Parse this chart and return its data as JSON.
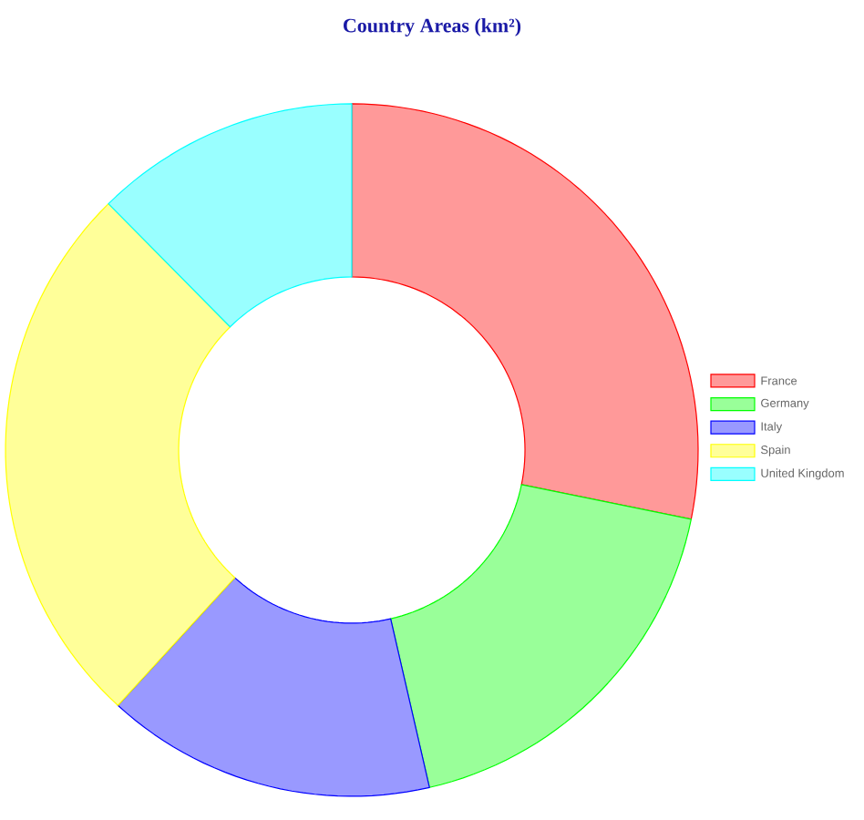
{
  "chart_data": {
    "type": "donut",
    "title": "Country Areas (km²)",
    "categories": [
      "France",
      "Germany",
      "Italy",
      "Spain",
      "United Kingdom"
    ],
    "values": [
      28.2,
      18.2,
      15.4,
      25.8,
      12.4
    ],
    "colors": [
      "#ff9999",
      "#99ff99",
      "#9999ff",
      "#ffff99",
      "#99ffff"
    ],
    "legend": "right"
  }
}
